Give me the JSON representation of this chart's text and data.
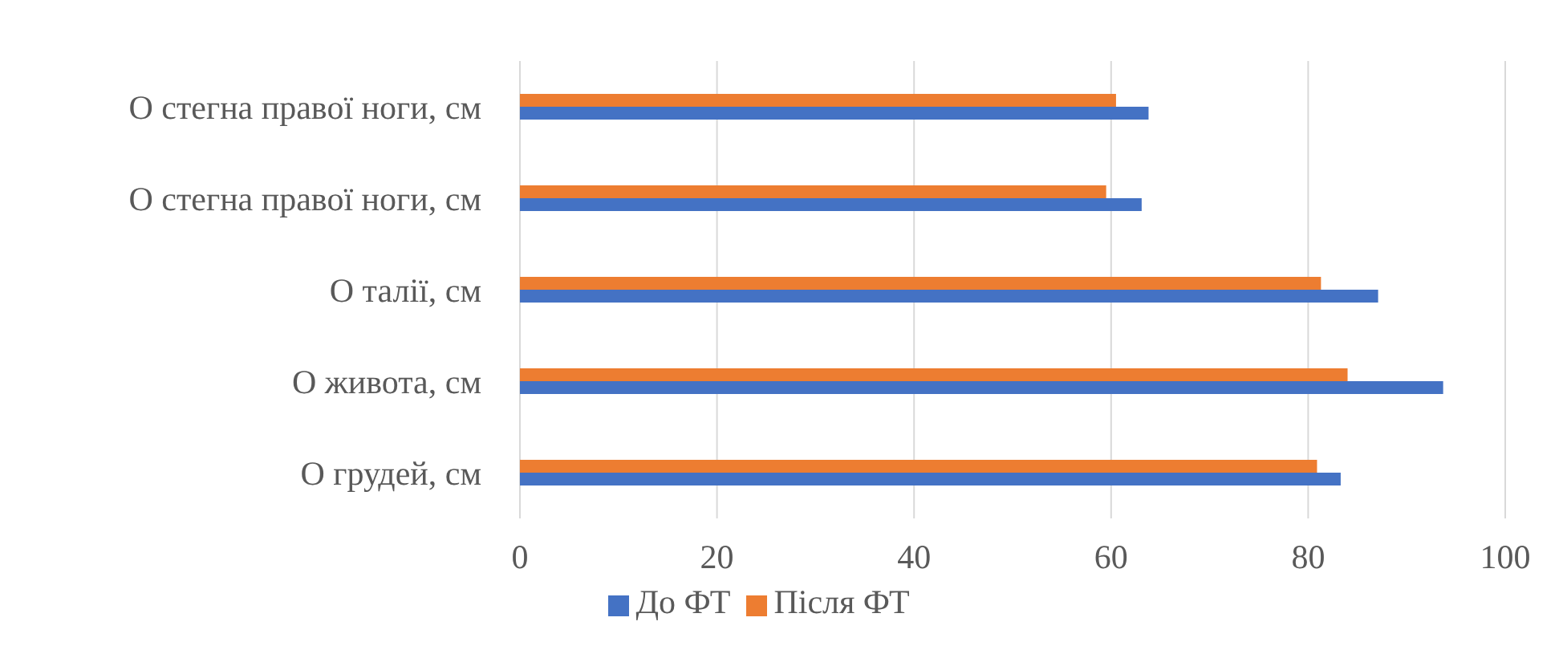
{
  "chart_data": {
    "type": "bar",
    "orientation": "horizontal",
    "categories": [
      "О стегна правої ноги, см",
      "О стегна правої ноги, см",
      "О талії, см",
      "О живота, см",
      "О грудей, см"
    ],
    "series": [
      {
        "name": "Після ФТ",
        "color": "#ed7d31",
        "values": [
          60.5,
          59.5,
          81.3,
          84.0,
          80.9
        ]
      },
      {
        "name": "До ФТ",
        "color": "#4472c4",
        "values": [
          63.8,
          63.1,
          87.1,
          93.7,
          83.3
        ]
      }
    ],
    "xlim": [
      0,
      100
    ],
    "xticks": [
      0,
      20,
      40,
      60,
      80,
      100
    ],
    "grid": "x",
    "legend": "bottom"
  }
}
